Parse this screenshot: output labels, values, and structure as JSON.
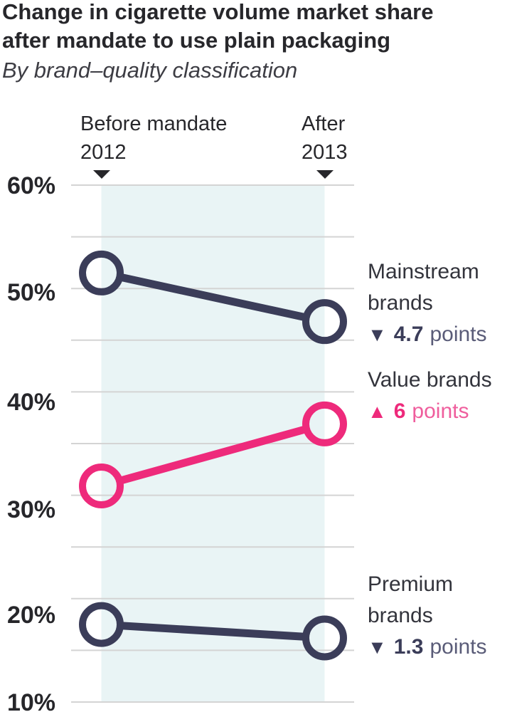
{
  "title": {
    "line1": "Change in cigarette volume market share",
    "line2": "after mandate to use plain packaging",
    "subtitle": "By brand–quality classification"
  },
  "columns": {
    "before": {
      "label": "Before mandate",
      "year": "2012"
    },
    "after": {
      "label": "After",
      "year": "2013"
    }
  },
  "chart_data": {
    "type": "line",
    "subtype": "slope-chart",
    "x_categories": [
      "2012 (before mandate)",
      "2013 (after mandate)"
    ],
    "ylim": [
      10,
      60
    ],
    "ytick_step": 5,
    "yticks": [
      "60%",
      "50%",
      "40%",
      "30%",
      "20%",
      "10%"
    ],
    "grid": true,
    "series": [
      {
        "name": "Mainstream brands",
        "label": "Mainstream\nbrands",
        "values": [
          51.5,
          46.8
        ],
        "change": {
          "arrow": "▼",
          "value": "4.7",
          "suffix": "points",
          "delta": -4.7
        },
        "color": "#3B3D59",
        "suffix_color": "#5A5C78"
      },
      {
        "name": "Value brands",
        "label": "Value brands",
        "values": [
          30.9,
          36.9
        ],
        "change": {
          "arrow": "▲",
          "value": "6",
          "suffix": "points",
          "delta": 6
        },
        "color": "#EE2A7B",
        "suffix_color": "#EF5E9D"
      },
      {
        "name": "Premium brands",
        "label": "Premium\nbrands",
        "values": [
          17.5,
          16.2
        ],
        "change": {
          "arrow": "▼",
          "value": "1.3",
          "suffix": "points",
          "delta": -1.3
        },
        "color": "#3B3D59",
        "suffix_color": "#5A5C78"
      }
    ],
    "colors": {
      "band": "#E9F4F5",
      "gridline": "#D4D4D4",
      "marker": "#26262A",
      "text": "#27272B"
    }
  }
}
